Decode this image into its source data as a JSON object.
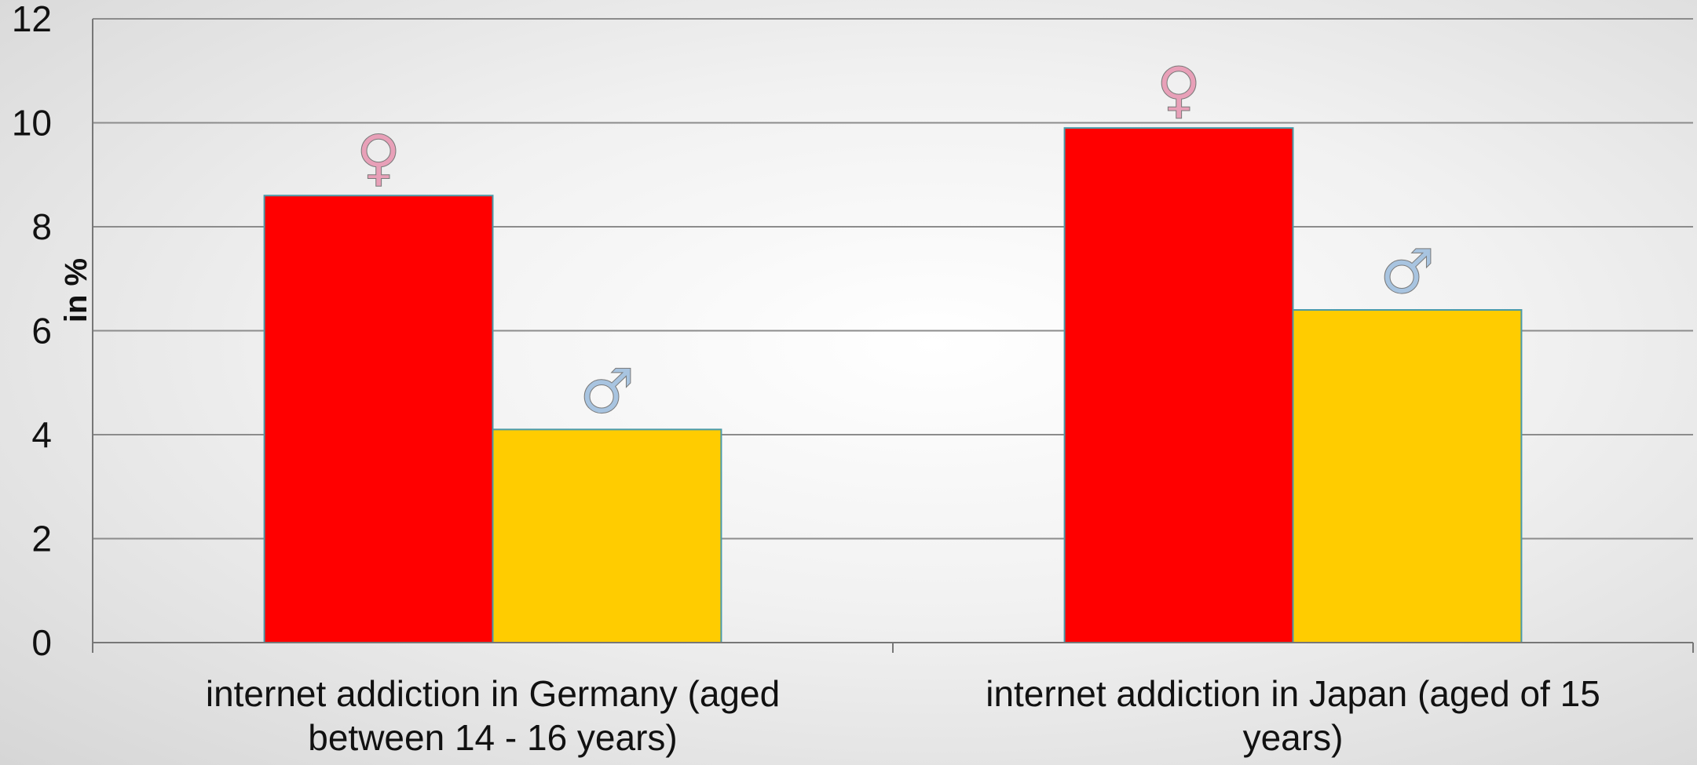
{
  "chart_data": {
    "type": "bar",
    "categories": [
      [
        "internet addiction in Germany (aged",
        "between 14 - 16 years)"
      ],
      [
        "internet addiction in Japan (aged of 15",
        "years)"
      ]
    ],
    "series": [
      {
        "symbol": "♀",
        "color": "#ff0000",
        "symbol_color": "#e8a0b8",
        "values": [
          8.6,
          9.9
        ]
      },
      {
        "symbol": "♂",
        "color": "#ffcc00",
        "symbol_color": "#a8c4e0",
        "values": [
          4.1,
          6.4
        ]
      }
    ],
    "ylabel": "in %",
    "ylim": [
      0,
      12
    ],
    "yticks": [
      0,
      2,
      4,
      6,
      8,
      10,
      12
    ],
    "grid": true
  }
}
